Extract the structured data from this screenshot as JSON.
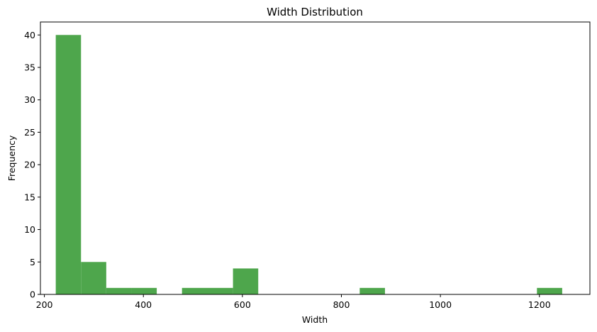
{
  "chart_data": {
    "type": "bar",
    "title": "Width Distribution",
    "xlabel": "Width",
    "ylabel": "Frequency",
    "bar_color": "#4ea64c",
    "xlim": [
      192,
      1302
    ],
    "ylim": [
      0,
      42
    ],
    "xticks": [
      200,
      400,
      600,
      800,
      1000,
      1200
    ],
    "yticks": [
      0,
      5,
      10,
      15,
      20,
      25,
      30,
      35,
      40
    ],
    "grid": false,
    "legend": "none",
    "bins": [
      {
        "x0": 223,
        "x1": 274,
        "count": 40
      },
      {
        "x0": 274,
        "x1": 325,
        "count": 5
      },
      {
        "x0": 325,
        "x1": 376,
        "count": 1
      },
      {
        "x0": 376,
        "x1": 427,
        "count": 1
      },
      {
        "x0": 427,
        "x1": 478,
        "count": 0
      },
      {
        "x0": 478,
        "x1": 530,
        "count": 1
      },
      {
        "x0": 530,
        "x1": 581,
        "count": 1
      },
      {
        "x0": 581,
        "x1": 632,
        "count": 4
      },
      {
        "x0": 632,
        "x1": 683,
        "count": 0
      },
      {
        "x0": 683,
        "x1": 734,
        "count": 0
      },
      {
        "x0": 734,
        "x1": 786,
        "count": 0
      },
      {
        "x0": 786,
        "x1": 837,
        "count": 0
      },
      {
        "x0": 837,
        "x1": 888,
        "count": 1
      },
      {
        "x0": 888,
        "x1": 939,
        "count": 0
      },
      {
        "x0": 939,
        "x1": 990,
        "count": 0
      },
      {
        "x0": 990,
        "x1": 1042,
        "count": 0
      },
      {
        "x0": 1042,
        "x1": 1093,
        "count": 0
      },
      {
        "x0": 1093,
        "x1": 1144,
        "count": 0
      },
      {
        "x0": 1144,
        "x1": 1195,
        "count": 0
      },
      {
        "x0": 1195,
        "x1": 1246,
        "count": 1
      }
    ]
  }
}
